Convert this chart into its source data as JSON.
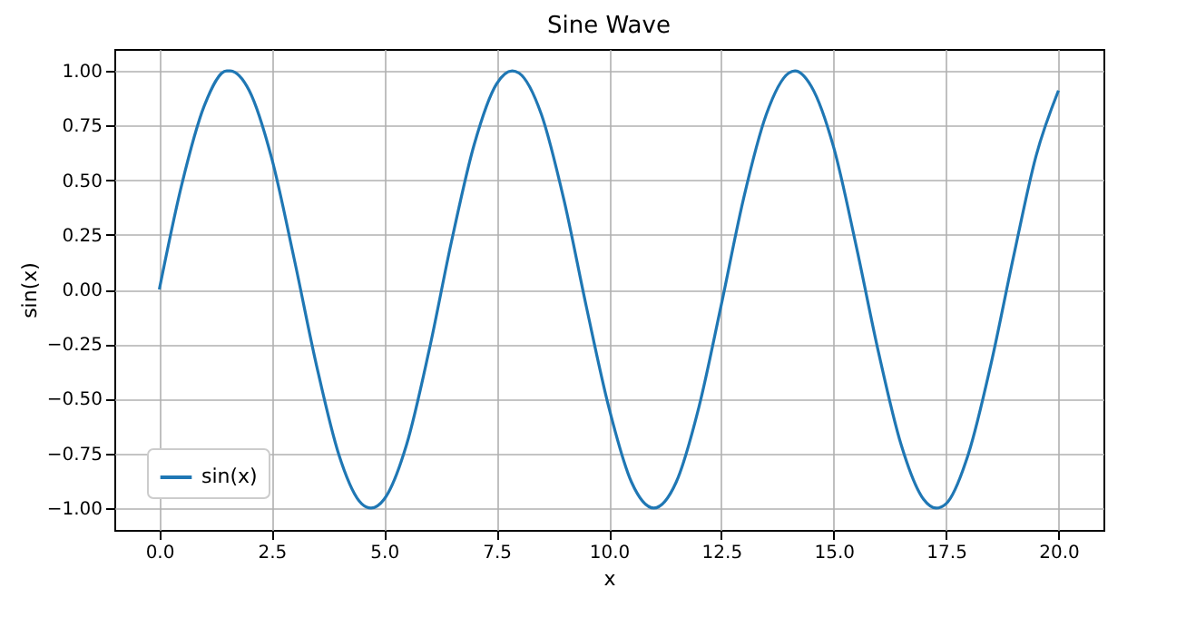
{
  "chart_data": {
    "type": "line",
    "title": "Sine Wave",
    "xlabel": "x",
    "ylabel": "sin(x)",
    "x": [
      0,
      0.5,
      1,
      1.5,
      1.57,
      2,
      2.5,
      3,
      3.5,
      4,
      4.5,
      4.71,
      5,
      5.5,
      6,
      6.5,
      7,
      7.5,
      7.85,
      8,
      8.5,
      9,
      9.5,
      10,
      10.5,
      11,
      11.5,
      12,
      12.5,
      13,
      13.5,
      14,
      14.14,
      14.5,
      15,
      15.5,
      16,
      16.5,
      17,
      17.28,
      17.5,
      18,
      18.5,
      19,
      19.5,
      20
    ],
    "series": [
      {
        "name": "sin(x)",
        "color": "#1f77b4",
        "values": [
          0,
          0.48,
          0.84,
          1.0,
          1.0,
          0.91,
          0.6,
          0.14,
          -0.35,
          -0.76,
          -0.98,
          -1.0,
          -0.96,
          -0.71,
          -0.28,
          0.22,
          0.66,
          0.94,
          1.0,
          0.99,
          0.8,
          0.41,
          -0.08,
          -0.54,
          -0.88,
          -1.0,
          -0.88,
          -0.54,
          -0.07,
          0.42,
          0.8,
          0.99,
          1.0,
          0.93,
          0.65,
          0.2,
          -0.29,
          -0.71,
          -0.96,
          -1.0,
          -0.98,
          -0.75,
          -0.34,
          0.15,
          0.61,
          0.91
        ]
      }
    ],
    "xlim": [
      -1,
      21
    ],
    "xticks": [
      {
        "value": 0,
        "label": "0.0"
      },
      {
        "value": 2.5,
        "label": "2.5"
      },
      {
        "value": 5,
        "label": "5.0"
      },
      {
        "value": 7.5,
        "label": "7.5"
      },
      {
        "value": 10,
        "label": "10.0"
      },
      {
        "value": 12.5,
        "label": "12.5"
      },
      {
        "value": 15,
        "label": "15.0"
      },
      {
        "value": 17.5,
        "label": "17.5"
      },
      {
        "value": 20,
        "label": "20.0"
      }
    ],
    "ylim": [
      -1.1,
      1.1
    ],
    "yticks": [
      {
        "value": -1,
        "label": "−1.00"
      },
      {
        "value": -0.75,
        "label": "−0.75"
      },
      {
        "value": -0.5,
        "label": "−0.50"
      },
      {
        "value": -0.25,
        "label": "−0.25"
      },
      {
        "value": 0,
        "label": "0.00"
      },
      {
        "value": 0.25,
        "label": "0.25"
      },
      {
        "value": 0.5,
        "label": "0.50"
      },
      {
        "value": 0.75,
        "label": "0.75"
      },
      {
        "value": 1,
        "label": "1.00"
      }
    ],
    "grid": true,
    "legend": "bottom left",
    "line_style": "solid"
  }
}
